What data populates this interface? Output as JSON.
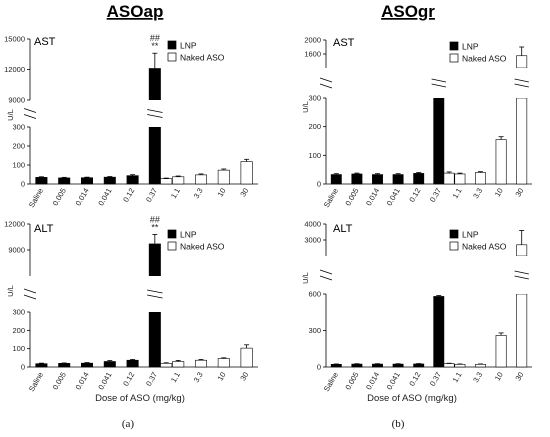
{
  "figure": {
    "heading_left": "ASOap",
    "heading_right": "ASOgr",
    "xlabel": "Dose of ASO (mg/kg)",
    "sublabel_left": "(a)",
    "sublabel_right": "(b)"
  },
  "chart_data": [
    {
      "id": "asoap-ast",
      "type": "bar",
      "panel": "ASOap",
      "title": "AST",
      "ylabel": "U/L",
      "axis": {
        "lower": [
          0,
          300
        ],
        "upper": [
          9000,
          15000
        ],
        "lower_ticks": [
          0,
          100,
          200,
          300
        ],
        "upper_ticks": [
          9000,
          12000,
          15000
        ],
        "break": true
      },
      "categories": [
        "Saline",
        "0.005",
        "0.014",
        "0.041",
        "0.12",
        "0.37",
        "1.1",
        "3.3",
        "10",
        "30"
      ],
      "series": [
        {
          "name": "LNP",
          "color": "#000000",
          "values": [
            35,
            32,
            33,
            36,
            44,
            12100,
            null,
            null,
            null,
            null
          ],
          "errors": [
            3,
            3,
            3,
            3,
            5,
            1500,
            null,
            null,
            null,
            null
          ]
        },
        {
          "name": "Naked ASO",
          "color": "#ffffff",
          "values": [
            null,
            null,
            null,
            null,
            null,
            28,
            38,
            48,
            73,
            118
          ],
          "errors": [
            null,
            null,
            null,
            null,
            null,
            3,
            4,
            5,
            6,
            12
          ]
        }
      ],
      "annotations": [
        {
          "category": "0.37",
          "lines": [
            "##",
            "**"
          ]
        }
      ],
      "legend": "top-right"
    },
    {
      "id": "asoap-alt",
      "type": "bar",
      "panel": "ASOap",
      "title": "ALT",
      "ylabel": "U/L",
      "axis": {
        "lower": [
          0,
          300
        ],
        "upper": [
          6000,
          12000
        ],
        "lower_ticks": [
          0,
          100,
          200,
          300
        ],
        "upper_ticks": [
          9000,
          12000
        ],
        "break": true
      },
      "categories": [
        "Saline",
        "0.005",
        "0.014",
        "0.041",
        "0.12",
        "0.37",
        "1.1",
        "3.3",
        "10",
        "30"
      ],
      "series": [
        {
          "name": "LNP",
          "color": "#000000",
          "values": [
            18,
            20,
            21,
            30,
            37,
            9700,
            null,
            null,
            null,
            null
          ],
          "errors": [
            3,
            2,
            3,
            5,
            4,
            1100,
            null,
            null,
            null,
            null
          ]
        },
        {
          "name": "Naked ASO",
          "color": "#ffffff",
          "values": [
            null,
            null,
            null,
            null,
            null,
            20,
            30,
            37,
            46,
            103
          ],
          "errors": [
            null,
            null,
            null,
            null,
            null,
            3,
            6,
            4,
            4,
            18
          ]
        }
      ],
      "annotations": [
        {
          "category": "0.37",
          "lines": [
            "##",
            "**"
          ]
        }
      ],
      "legend": "top-right"
    },
    {
      "id": "asogr-ast",
      "type": "bar",
      "panel": "ASOgr",
      "title": "AST",
      "ylabel": "U/L",
      "axis": {
        "lower": [
          0,
          300
        ],
        "upper": [
          1200,
          2000
        ],
        "lower_ticks": [
          0,
          100,
          200,
          300
        ],
        "upper_ticks": [
          1600,
          2000
        ],
        "break": true
      },
      "categories": [
        "Saline",
        "0.005",
        "0.014",
        "0.041",
        "0.12",
        "0.37",
        "1.1",
        "3.3",
        "10",
        "30"
      ],
      "series": [
        {
          "name": "LNP",
          "color": "#000000",
          "values": [
            33,
            35,
            33,
            33,
            37,
            305,
            null,
            null,
            null,
            null
          ],
          "errors": [
            3,
            3,
            3,
            3,
            3,
            8,
            null,
            null,
            null,
            null
          ]
        },
        {
          "name": "Naked ASO",
          "color": "#ffffff",
          "values": [
            null,
            null,
            null,
            null,
            null,
            38,
            35,
            40,
            155,
            1550
          ],
          "errors": [
            null,
            null,
            null,
            null,
            null,
            4,
            3,
            3,
            10,
            250
          ]
        }
      ],
      "annotations": [],
      "legend": "top-right"
    },
    {
      "id": "asogr-alt",
      "type": "bar",
      "panel": "ASOgr",
      "title": "ALT",
      "ylabel": "U/L",
      "axis": {
        "lower": [
          0,
          600
        ],
        "upper": [
          2000,
          4000
        ],
        "lower_ticks": [
          0,
          300,
          600
        ],
        "upper_ticks": [
          3000,
          4000
        ],
        "break": true
      },
      "categories": [
        "Saline",
        "0.005",
        "0.014",
        "0.041",
        "0.12",
        "0.37",
        "1.1",
        "3.3",
        "10",
        "30"
      ],
      "series": [
        {
          "name": "LNP",
          "color": "#000000",
          "values": [
            22,
            24,
            24,
            24,
            25,
            580,
            null,
            null,
            null,
            null
          ],
          "errors": [
            3,
            3,
            3,
            3,
            3,
            8,
            null,
            null,
            null,
            null
          ]
        },
        {
          "name": "Naked ASO",
          "color": "#ffffff",
          "values": [
            null,
            null,
            null,
            null,
            null,
            28,
            22,
            22,
            260,
            2700
          ],
          "errors": [
            null,
            null,
            null,
            null,
            null,
            3,
            3,
            3,
            20,
            900
          ]
        }
      ],
      "annotations": [],
      "legend": "top-right"
    }
  ]
}
